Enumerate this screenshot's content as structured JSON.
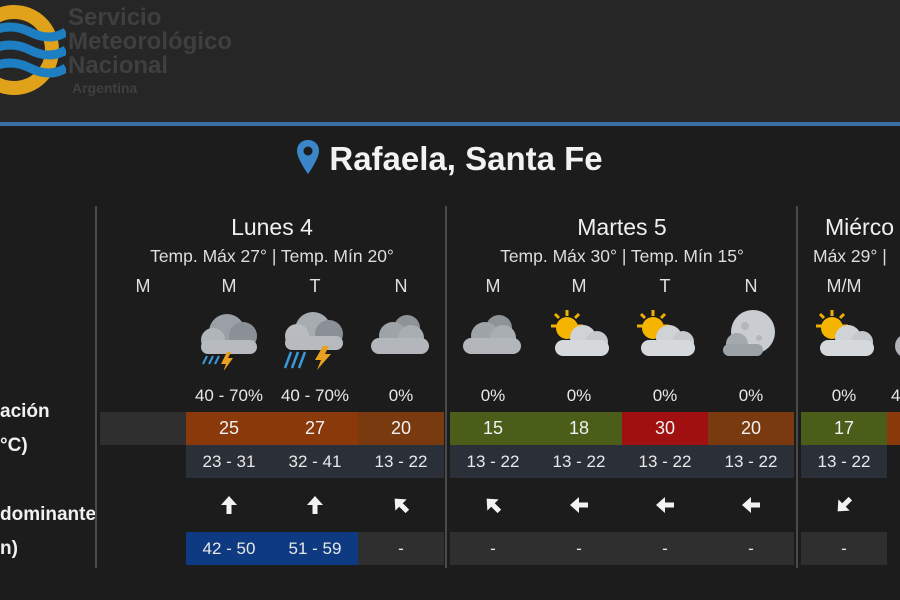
{
  "header": {
    "org_lines": [
      "Servicio",
      "Meteorológico",
      "Nacional",
      "Argentina"
    ]
  },
  "location": {
    "name": "Rafaela, Santa Fe",
    "icon": "location-pin-icon"
  },
  "row_labels": {
    "precip": "ación",
    "temp": "°C)",
    "wind": "dominante",
    "gust": "n)"
  },
  "colors": {
    "empty_cell": "#2f2f2f",
    "range_cell": "#2a2f38",
    "orange": "#8a3a0a",
    "orange_dark": "#7a3a10",
    "green": "#4a5e1a",
    "red": "#a01010",
    "gust_blue": "#0d3a80",
    "accent_line": "#3a6fa3"
  },
  "days": [
    {
      "title": "Lunes 4",
      "temps": "Temp. Máx 27° | Temp. Mín 20°",
      "periods": [
        {
          "label": "M",
          "icon": "",
          "precip": "",
          "temp": "",
          "temp_color": "empty_cell",
          "range": "",
          "wind_icon": "",
          "wind_deg": 0,
          "gust": "",
          "gust_color": ""
        },
        {
          "label": "M",
          "icon": "thunderstorm-icon",
          "precip": "40 - 70%",
          "temp": "25",
          "temp_color": "orange",
          "range": "23 - 31",
          "wind_icon": "arrow-up-icon",
          "wind_deg": 0,
          "gust": "42 - 50",
          "gust_color": "gust_blue"
        },
        {
          "label": "T",
          "icon": "thunderstorm-heavy-icon",
          "precip": "40 - 70%",
          "temp": "27",
          "temp_color": "orange",
          "range": "32 - 41",
          "wind_icon": "arrow-up-icon",
          "wind_deg": 0,
          "gust": "51 - 59",
          "gust_color": "gust_blue"
        },
        {
          "label": "N",
          "icon": "cloudy-night-icon",
          "precip": "0%",
          "temp": "20",
          "temp_color": "orange_dark",
          "range": "13 - 22",
          "wind_icon": "arrow-up-left-icon",
          "wind_deg": -45,
          "gust": "-",
          "gust_color": ""
        }
      ]
    },
    {
      "title": "Martes 5",
      "temps": "Temp. Máx 30° | Temp. Mín 15°",
      "periods": [
        {
          "label": "M",
          "icon": "cloudy-night-icon",
          "precip": "0%",
          "temp": "15",
          "temp_color": "green",
          "range": "13 - 22",
          "wind_icon": "arrow-up-left-icon",
          "wind_deg": -45,
          "gust": "-",
          "gust_color": ""
        },
        {
          "label": "M",
          "icon": "partly-cloudy-icon",
          "precip": "0%",
          "temp": "18",
          "temp_color": "green",
          "range": "13 - 22",
          "wind_icon": "arrow-left-icon",
          "wind_deg": -90,
          "gust": "-",
          "gust_color": ""
        },
        {
          "label": "T",
          "icon": "partly-cloudy-icon",
          "precip": "0%",
          "temp": "30",
          "temp_color": "red",
          "range": "13 - 22",
          "wind_icon": "arrow-left-icon",
          "wind_deg": -90,
          "gust": "-",
          "gust_color": ""
        },
        {
          "label": "N",
          "icon": "cloudy-moon-icon",
          "precip": "0%",
          "temp": "20",
          "temp_color": "orange_dark",
          "range": "13 - 22",
          "wind_icon": "arrow-left-icon",
          "wind_deg": -90,
          "gust": "-",
          "gust_color": ""
        }
      ]
    },
    {
      "title": "Miérco",
      "temps": "Máx 29° |",
      "periods": [
        {
          "label": "M/M",
          "icon": "partly-cloudy-icon",
          "precip": "0%",
          "temp": "17",
          "temp_color": "green",
          "range": "13 - 22",
          "wind_icon": "arrow-down-left-icon",
          "wind_deg": -135,
          "gust": "-",
          "gust_color": ""
        },
        {
          "label": "",
          "icon": "cloud-partial-icon",
          "precip": "4",
          "temp": "",
          "temp_color": "orange",
          "range": "",
          "wind_icon": "",
          "wind_deg": 0,
          "gust": "",
          "gust_color": ""
        }
      ]
    }
  ]
}
